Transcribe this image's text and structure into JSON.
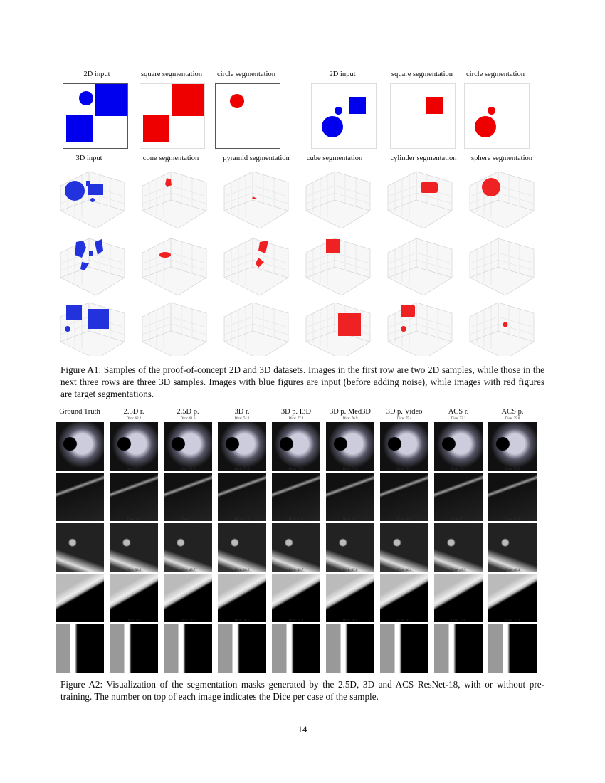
{
  "figure_a1": {
    "row1_titles": [
      "2D input",
      "square segmentation",
      "circle segmentation",
      "2D input",
      "square segmentation",
      "circle segmentation"
    ],
    "row2_titles": [
      "3D input",
      "cone segmentation",
      "pyramid segmentation",
      "cube segmentation",
      "cylinder segmentation",
      "sphere segmentation"
    ],
    "colors": {
      "input": "#0000ee",
      "target": "#ee0000"
    },
    "caption": "Figure A1: Samples of the proof-of-concept 2D and 3D datasets. Images in the first row are two 2D samples, while those in the next three rows are three 3D samples. Images with blue figures are input (before adding noise), while images with red figures are target segmentations."
  },
  "figure_a2": {
    "columns": [
      "Ground Truth",
      "2.5D r.",
      "2.5D p.",
      "3D r.",
      "3D p. I3D",
      "3D p. Med3D",
      "3D p. Video",
      "ACS r.",
      "ACS p."
    ],
    "dice_rows": [
      [
        "",
        "Dice: 62.2",
        "Dice: 61.6",
        "Dice: 74.2",
        "Dice: 77.4",
        "Dice: 76.9",
        "Dice: 75.4",
        "Dice: 73.1",
        "Dice: 79.8"
      ],
      [
        "",
        "Dice: 71.2",
        "Dice: 71.6",
        "Dice: 73.3",
        "Dice: 75.5",
        "Dice: 74.0",
        "Dice: 76.1",
        "Dice: 73.1",
        "Dice: 78.5"
      ],
      [
        "",
        "Dice: 6.0",
        "Dice: 5.2",
        "Dice: 53.9",
        "Dice: 61.1",
        "Dice: 58.7",
        "Dice: 58.6",
        "Dice: 63.3",
        "Dice: 65.0"
      ],
      [
        "",
        "Dice: 33.3",
        "Dice: 45.7",
        "Dice: 28.0",
        "Dice: 45.7",
        "Dice: 47.6",
        "Dice: 46.4",
        "Dice: 43.3",
        "Dice: 48.4"
      ],
      [
        "",
        "Dice: 73.1",
        "Dice: 72.7",
        "Dice: 76.6",
        "Dice: 75.4",
        "Dice: 76.9",
        "Dice: 76.4",
        "Dice: 74.9",
        "Dice: 77.3"
      ]
    ],
    "caption": "Figure A2: Visualization of the segmentation masks generated by the 2.5D, 3D and ACS ResNet-18, with or without pre-training. The number on top of each image indicates the Dice per case of the sample."
  },
  "page_number": "14"
}
